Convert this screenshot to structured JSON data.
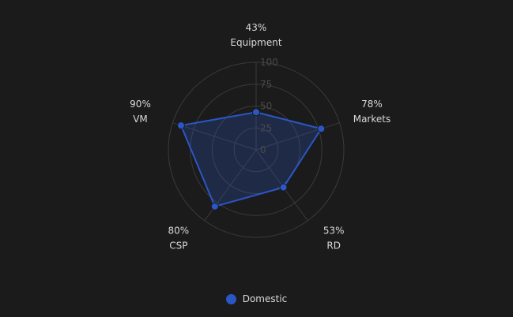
{
  "chart_data": {
    "type": "radar",
    "indicators": [
      "Equipment",
      "Markets",
      "RD",
      "CSP",
      "VM"
    ],
    "max": 100,
    "radial_ticks": [
      "0",
      "25",
      "50",
      "75",
      "100"
    ],
    "series": [
      {
        "name": "Domestic",
        "values": [
          43,
          78,
          53,
          80,
          90
        ],
        "value_labels": [
          "43%",
          "78%",
          "53%",
          "80%",
          "90%"
        ],
        "color": "#2a56c6"
      }
    ],
    "legend_position": "bottom-center"
  },
  "colors": {
    "background": "#1b1b1b",
    "grid": "#3a3a3a",
    "text": "#d8d8d8",
    "series_fill": "rgba(42,86,198,0.25)",
    "series_stroke": "#2a56c6"
  }
}
